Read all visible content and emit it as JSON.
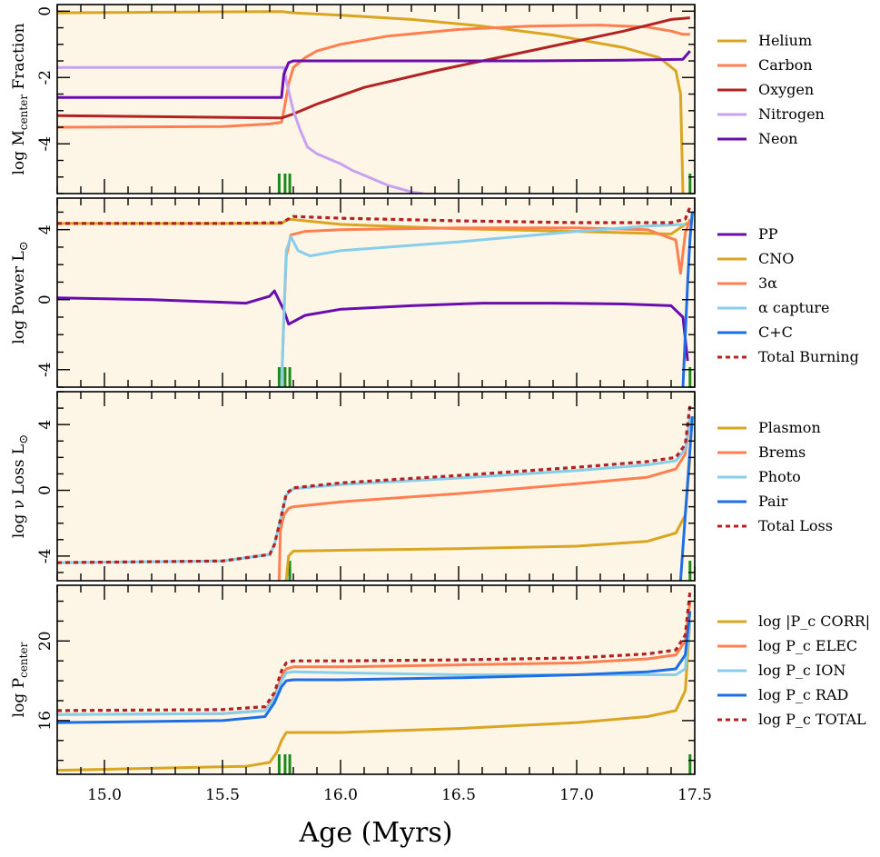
{
  "figure": {
    "xlabel": "Age (Myrs)",
    "xlim": [
      14.8,
      17.5
    ],
    "xticks": [
      15.0,
      15.5,
      16.0,
      16.5,
      17.0,
      17.5
    ],
    "xtick_labels": [
      "15.0",
      "15.5",
      "16.0",
      "16.5",
      "17.0",
      "17.5"
    ],
    "panel_background": "#fdf5e6"
  },
  "chart_data": [
    {
      "type": "line",
      "ylabel": "log M",
      "ylabel_subscript": "center",
      "ylabel_suffix": " Fraction",
      "ylim": [
        -5.5,
        0.2
      ],
      "yticks": [
        0,
        -2,
        -4
      ],
      "ytick_labels": [
        "0",
        "-2",
        "-4"
      ],
      "legend_position": "right",
      "markers": [
        15.74,
        15.765,
        15.785,
        17.48
      ],
      "series": [
        {
          "name": "Helium",
          "color": "#daa520",
          "style": "solid",
          "x": [
            14.8,
            15.0,
            15.5,
            15.75,
            15.8,
            16.0,
            16.3,
            16.6,
            16.9,
            17.2,
            17.35,
            17.42,
            17.44,
            17.45
          ],
          "y": [
            -0.05,
            -0.04,
            -0.02,
            -0.01,
            -0.05,
            -0.12,
            -0.25,
            -0.45,
            -0.72,
            -1.1,
            -1.4,
            -1.8,
            -2.5,
            -5.5
          ]
        },
        {
          "name": "Carbon",
          "color": "#ff7f50",
          "style": "solid",
          "x": [
            14.8,
            15.5,
            15.7,
            15.75,
            15.76,
            15.78,
            15.8,
            15.85,
            15.9,
            16.0,
            16.2,
            16.5,
            16.8,
            17.1,
            17.3,
            17.4,
            17.45,
            17.48
          ],
          "y": [
            -3.5,
            -3.48,
            -3.4,
            -3.35,
            -3.0,
            -2.2,
            -1.7,
            -1.4,
            -1.2,
            -1.0,
            -0.75,
            -0.55,
            -0.45,
            -0.42,
            -0.48,
            -0.6,
            -0.7,
            -0.7
          ]
        },
        {
          "name": "Oxygen",
          "color": "#b22222",
          "style": "solid",
          "x": [
            14.8,
            15.5,
            15.75,
            15.8,
            15.9,
            16.1,
            16.4,
            16.7,
            17.0,
            17.2,
            17.4,
            17.48
          ],
          "y": [
            -3.15,
            -3.2,
            -3.22,
            -3.1,
            -2.8,
            -2.3,
            -1.8,
            -1.35,
            -0.9,
            -0.6,
            -0.25,
            -0.2
          ]
        },
        {
          "name": "Nitrogen",
          "color": "#c8a2f0",
          "style": "solid",
          "x": [
            14.8,
            15.5,
            15.76,
            15.77,
            15.8,
            15.83,
            15.86,
            15.9,
            15.95,
            16.0,
            16.05,
            16.1,
            16.15,
            16.2,
            16.25,
            16.3,
            16.35
          ],
          "y": [
            -1.7,
            -1.7,
            -1.7,
            -2.1,
            -3.0,
            -3.6,
            -4.1,
            -4.3,
            -4.45,
            -4.6,
            -4.8,
            -4.95,
            -5.1,
            -5.25,
            -5.35,
            -5.45,
            -5.5
          ]
        },
        {
          "name": "Neon",
          "color": "#6a0dad",
          "style": "solid",
          "x": [
            14.8,
            15.5,
            15.75,
            15.76,
            15.78,
            15.8,
            16.2,
            16.8,
            17.2,
            17.45,
            17.48
          ],
          "y": [
            -2.6,
            -2.6,
            -2.6,
            -1.9,
            -1.55,
            -1.5,
            -1.5,
            -1.5,
            -1.48,
            -1.45,
            -1.2
          ]
        }
      ]
    },
    {
      "type": "line",
      "ylabel": "log  Power L",
      "ylabel_suffix": "⊙",
      "ylim": [
        -5.0,
        5.8
      ],
      "yticks": [
        4,
        0,
        -4
      ],
      "ytick_labels": [
        "4",
        "0",
        "-4"
      ],
      "legend_position": "right",
      "markers": [
        15.74,
        15.765,
        15.785,
        17.48
      ],
      "series": [
        {
          "name": "PP",
          "color": "#6a0dad",
          "style": "solid",
          "x": [
            14.8,
            15.2,
            15.6,
            15.7,
            15.72,
            15.76,
            15.78,
            15.85,
            16.0,
            16.3,
            16.6,
            16.9,
            17.2,
            17.4,
            17.45,
            17.47
          ],
          "y": [
            0.1,
            0.0,
            -0.2,
            0.2,
            0.5,
            -0.6,
            -1.4,
            -0.9,
            -0.55,
            -0.35,
            -0.2,
            -0.2,
            -0.25,
            -0.35,
            -1.0,
            -3.5
          ]
        },
        {
          "name": "CNO",
          "color": "#daa520",
          "style": "solid",
          "x": [
            14.8,
            15.5,
            15.75,
            15.78,
            16.0,
            16.5,
            17.0,
            17.4,
            17.47
          ],
          "y": [
            4.35,
            4.35,
            4.35,
            4.6,
            4.3,
            4.05,
            3.9,
            3.75,
            4.4
          ]
        },
        {
          "name": "3α",
          "color": "#ff7f50",
          "style": "solid",
          "x": [
            15.75,
            15.76,
            15.77,
            15.79,
            15.85,
            16.0,
            16.5,
            17.0,
            17.3,
            17.42,
            17.44,
            17.46,
            17.48
          ],
          "y": [
            -5.0,
            -1.0,
            2.5,
            3.7,
            3.9,
            4.0,
            4.1,
            4.1,
            4.0,
            3.4,
            1.5,
            3.8,
            4.6
          ]
        },
        {
          "name": "α capture",
          "color": "#87ceeb",
          "style": "solid",
          "x": [
            15.75,
            15.76,
            15.77,
            15.79,
            15.82,
            15.87,
            16.0,
            16.5,
            17.0,
            17.3,
            17.46
          ],
          "y": [
            -5.0,
            -1.0,
            2.8,
            3.6,
            2.8,
            2.5,
            2.8,
            3.3,
            3.9,
            4.2,
            4.3
          ]
        },
        {
          "name": "C+C",
          "color": "#1e6ee6",
          "style": "solid",
          "x": [
            17.45,
            17.46,
            17.47,
            17.48,
            17.49
          ],
          "y": [
            -5.0,
            -2.0,
            1.0,
            3.5,
            5.0
          ]
        },
        {
          "name": "Total Burning",
          "color": "#b22222",
          "style": "dotted",
          "x": [
            14.8,
            15.5,
            15.75,
            15.8,
            16.0,
            16.5,
            17.0,
            17.4,
            17.46,
            17.48
          ],
          "y": [
            4.35,
            4.35,
            4.4,
            4.75,
            4.65,
            4.5,
            4.4,
            4.4,
            4.6,
            5.3
          ]
        }
      ]
    },
    {
      "type": "line",
      "ylabel": "log ν Loss L",
      "ylabel_suffix": "⊙",
      "ylim": [
        -5.5,
        6.0
      ],
      "yticks": [
        4,
        0,
        -4
      ],
      "ytick_labels": [
        "4",
        "0",
        "-4"
      ],
      "legend_position": "right",
      "markers": [
        15.785,
        17.48
      ],
      "series": [
        {
          "name": "Plasmon",
          "color": "#daa520",
          "style": "solid",
          "x": [
            15.77,
            15.78,
            15.8,
            16.0,
            16.5,
            17.0,
            17.3,
            17.42,
            17.46,
            17.48
          ],
          "y": [
            -5.5,
            -4.0,
            -3.7,
            -3.65,
            -3.55,
            -3.4,
            -3.1,
            -2.6,
            -1.5,
            2.0
          ]
        },
        {
          "name": "Brems",
          "color": "#ff7f50",
          "style": "solid",
          "x": [
            15.74,
            15.745,
            15.76,
            15.78,
            15.8,
            16.0,
            16.5,
            17.0,
            17.3,
            17.42,
            17.46,
            17.48
          ],
          "y": [
            -5.5,
            -2.5,
            -1.5,
            -1.1,
            -1.0,
            -0.7,
            -0.2,
            0.4,
            0.8,
            1.3,
            2.2,
            4.5
          ]
        },
        {
          "name": "Photo",
          "color": "#87ceeb",
          "style": "solid",
          "x": [
            14.8,
            15.5,
            15.7,
            15.72,
            15.75,
            15.77,
            15.8,
            16.0,
            16.5,
            17.0,
            17.3,
            17.42,
            17.46,
            17.48
          ],
          "y": [
            -4.4,
            -4.3,
            -3.9,
            -3.3,
            -1.5,
            -0.3,
            0.1,
            0.35,
            0.75,
            1.2,
            1.55,
            1.8,
            2.5,
            4.5
          ]
        },
        {
          "name": "Pair",
          "color": "#1e6ee6",
          "style": "solid",
          "x": [
            17.44,
            17.45,
            17.46,
            17.47,
            17.48,
            17.49
          ],
          "y": [
            -5.5,
            -3.5,
            -1.5,
            0.5,
            2.5,
            4.5
          ]
        },
        {
          "name": "Total Loss",
          "color": "#b22222",
          "style": "dotted",
          "x": [
            14.8,
            15.5,
            15.7,
            15.72,
            15.75,
            15.77,
            15.8,
            16.0,
            16.5,
            17.0,
            17.3,
            17.42,
            17.46,
            17.48
          ],
          "y": [
            -4.4,
            -4.3,
            -3.9,
            -3.3,
            -1.5,
            -0.2,
            0.15,
            0.45,
            0.9,
            1.4,
            1.75,
            2.0,
            2.8,
            5.2
          ]
        }
      ]
    },
    {
      "type": "line",
      "ylabel": "log P",
      "ylabel_subscript": "center",
      "ylim": [
        13.3,
        22.8
      ],
      "yticks": [
        20,
        16
      ],
      "ytick_labels": [
        "20",
        "16"
      ],
      "legend_position": "right",
      "markers": [
        15.74,
        15.765,
        15.785,
        17.48
      ],
      "series": [
        {
          "name": "log |P_c CORR|",
          "color": "#daa520",
          "style": "solid",
          "x": [
            14.8,
            15.2,
            15.6,
            15.7,
            15.73,
            15.75,
            15.77,
            15.8,
            16.0,
            16.5,
            17.0,
            17.3,
            17.42,
            17.46,
            17.48
          ],
          "y": [
            13.5,
            13.6,
            13.7,
            13.9,
            14.4,
            15.0,
            15.4,
            15.4,
            15.4,
            15.6,
            15.9,
            16.2,
            16.5,
            17.5,
            21.0
          ]
        },
        {
          "name": "log P_c ELEC",
          "color": "#ff7f50",
          "style": "solid",
          "x": [
            14.8,
            15.5,
            15.68,
            15.72,
            15.75,
            15.77,
            15.8,
            16.0,
            16.5,
            17.0,
            17.3,
            17.42,
            17.46,
            17.48
          ],
          "y": [
            16.3,
            16.35,
            16.5,
            17.2,
            18.2,
            18.6,
            18.7,
            18.7,
            18.8,
            18.9,
            19.1,
            19.3,
            20.0,
            22.0
          ]
        },
        {
          "name": "log P_c ION",
          "color": "#87ceeb",
          "style": "solid",
          "x": [
            14.8,
            15.5,
            15.68,
            15.72,
            15.75,
            15.77,
            15.8,
            16.0,
            16.5,
            17.0,
            17.3,
            17.42,
            17.46,
            17.48
          ],
          "y": [
            16.3,
            16.35,
            16.5,
            17.1,
            18.0,
            18.4,
            18.45,
            18.4,
            18.3,
            18.3,
            18.3,
            18.3,
            18.6,
            21.0
          ]
        },
        {
          "name": "log P_c RAD",
          "color": "#1e6ee6",
          "style": "solid",
          "x": [
            14.8,
            15.5,
            15.68,
            15.72,
            15.75,
            15.77,
            15.8,
            16.0,
            16.5,
            17.0,
            17.3,
            17.42,
            17.46,
            17.48
          ],
          "y": [
            15.9,
            16.0,
            16.2,
            16.9,
            17.7,
            18.0,
            18.05,
            18.05,
            18.15,
            18.3,
            18.45,
            18.6,
            19.3,
            21.5
          ]
        },
        {
          "name": "log P_c TOTAL",
          "color": "#b22222",
          "style": "dotted",
          "x": [
            14.8,
            15.5,
            15.68,
            15.72,
            15.75,
            15.77,
            15.8,
            16.0,
            16.5,
            17.0,
            17.3,
            17.42,
            17.46,
            17.48
          ],
          "y": [
            16.5,
            16.55,
            16.7,
            17.4,
            18.5,
            18.9,
            19.0,
            19.0,
            19.05,
            19.15,
            19.35,
            19.55,
            20.3,
            22.5
          ]
        }
      ]
    }
  ]
}
